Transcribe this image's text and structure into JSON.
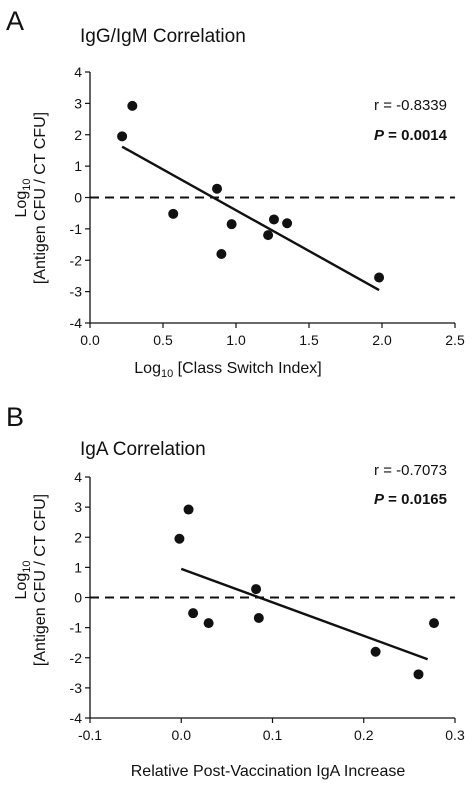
{
  "chart_data": [
    {
      "panel": "A",
      "type": "scatter",
      "title": "IgG/IgM Correlation",
      "xlabel_main": "Log",
      "xlabel_sub": "10",
      "xlabel_rest": " [Class Switch Index]",
      "ylabel_line1_main": "Log",
      "ylabel_line1_sub": "10",
      "ylabel_line2": "[Antigen CFU / CT CFU]",
      "xlim": [
        0.0,
        2.5
      ],
      "ylim": [
        -4,
        4
      ],
      "xticks": [
        "0.0",
        "0.5",
        "1.0",
        "1.5",
        "2.0",
        "2.5"
      ],
      "yticks": [
        "-4",
        "-3",
        "-2",
        "-1",
        "0",
        "1",
        "2",
        "3",
        "4"
      ],
      "points": [
        {
          "x": 0.22,
          "y": 1.95
        },
        {
          "x": 0.29,
          "y": 2.92
        },
        {
          "x": 0.57,
          "y": -0.52
        },
        {
          "x": 0.87,
          "y": 0.28
        },
        {
          "x": 0.9,
          "y": -1.8
        },
        {
          "x": 0.97,
          "y": -0.85
        },
        {
          "x": 1.22,
          "y": -1.2
        },
        {
          "x": 1.26,
          "y": -0.7
        },
        {
          "x": 1.35,
          "y": -0.82
        },
        {
          "x": 1.98,
          "y": -2.55
        }
      ],
      "fit_line": {
        "x": [
          0.22,
          1.98
        ],
        "y": [
          1.62,
          -2.95
        ]
      },
      "reference_line_y": 0,
      "stat_r": "r = -0.8339",
      "stat_p_label": "P",
      "stat_p_value": " = 0.0014",
      "grid": false,
      "legend": "none"
    },
    {
      "panel": "B",
      "type": "scatter",
      "title": "IgA Correlation",
      "xlabel": "Relative Post-Vaccination IgA Increase",
      "ylabel_line1_main": "Log",
      "ylabel_line1_sub": "10",
      "ylabel_line2": "[Antigen CFU / CT CFU]",
      "xlim": [
        -0.1,
        0.3
      ],
      "ylim": [
        -4,
        4
      ],
      "xticks": [
        "-0.1",
        "0.0",
        "0.1",
        "0.2",
        "0.3"
      ],
      "yticks": [
        "-4",
        "-3",
        "-2",
        "-1",
        "0",
        "1",
        "2",
        "3",
        "4"
      ],
      "points": [
        {
          "x": -0.002,
          "y": 1.95
        },
        {
          "x": 0.008,
          "y": 2.92
        },
        {
          "x": 0.013,
          "y": -0.52
        },
        {
          "x": 0.03,
          "y": -0.85
        },
        {
          "x": 0.082,
          "y": 0.28
        },
        {
          "x": 0.085,
          "y": -0.68
        },
        {
          "x": 0.213,
          "y": -1.8
        },
        {
          "x": 0.26,
          "y": -2.55
        },
        {
          "x": 0.277,
          "y": -0.85
        }
      ],
      "fit_line": {
        "x": [
          0.0,
          0.27
        ],
        "y": [
          0.95,
          -2.05
        ]
      },
      "reference_line_y": 0,
      "stat_r": "r = -0.7073",
      "stat_p_label": "P",
      "stat_p_value": " = 0.0165",
      "grid": false,
      "legend": "none"
    }
  ]
}
